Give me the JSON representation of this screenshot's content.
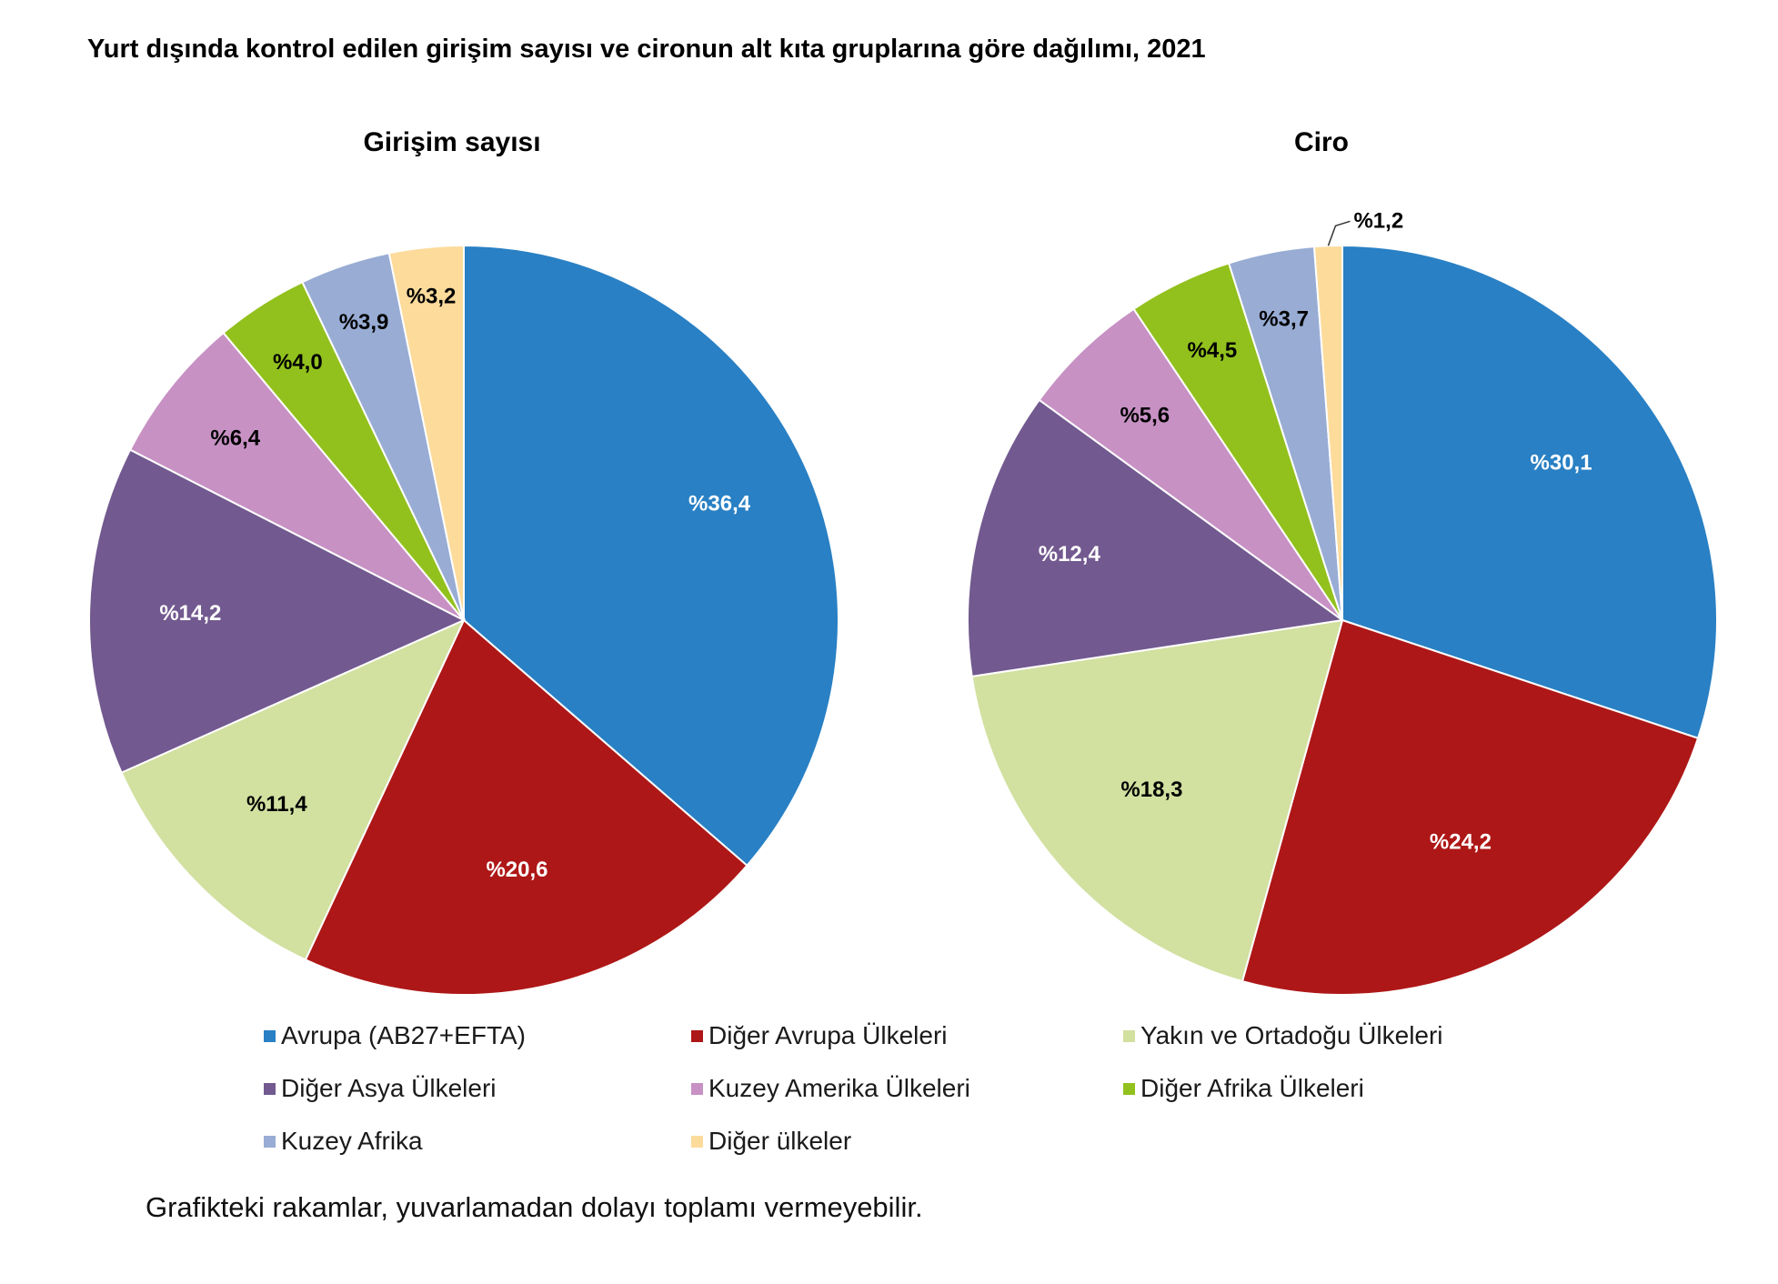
{
  "title": "Yurt dışında kontrol edilen girişim sayısı ve cironun alt kıta gruplarına göre dağılımı, 2021",
  "footnote": "Grafikteki rakamlar, yuvarlamadan dolayı toplamı vermeyebilir.",
  "chart_data": [
    {
      "type": "pie",
      "title": "Girişim sayısı",
      "categories": [
        "Avrupa (AB27+EFTA)",
        "Diğer Avrupa Ülkeleri",
        "Yakın ve Ortadoğu Ülkeleri",
        "Diğer Asya Ülkeleri",
        "Kuzey Amerika Ülkeleri",
        "Diğer Afrika Ülkeleri",
        "Kuzey Afrika",
        "Diğer ülkeler"
      ],
      "values": [
        36.4,
        20.6,
        11.4,
        14.2,
        6.4,
        4.0,
        3.9,
        3.2
      ],
      "labels": [
        "%36,4",
        "%20,6",
        "%11,4",
        "%14,2",
        "%6,4",
        "%4,0",
        "%3,9",
        "%3,2"
      ]
    },
    {
      "type": "pie",
      "title": "Ciro",
      "categories": [
        "Avrupa (AB27+EFTA)",
        "Diğer Avrupa Ülkeleri",
        "Yakın ve Ortadoğu Ülkeleri",
        "Diğer Asya Ülkeleri",
        "Kuzey Amerika Ülkeleri",
        "Diğer Afrika Ülkeleri",
        "Kuzey Afrika",
        "Diğer ülkeler"
      ],
      "values": [
        30.1,
        24.2,
        18.3,
        12.4,
        5.6,
        4.5,
        3.7,
        1.2
      ],
      "labels": [
        "%30,1",
        "%24,2",
        "%18,3",
        "%12,4",
        "%5,6",
        "%4,5",
        "%3,7",
        "%1,2"
      ]
    }
  ],
  "legend": [
    {
      "label": "Avrupa (AB27+EFTA)",
      "color": "#2980c4"
    },
    {
      "label": "Diğer Avrupa Ülkeleri",
      "color": "#ae1717"
    },
    {
      "label": "Yakın ve Ortadoğu Ülkeleri",
      "color": "#d2e0a0"
    },
    {
      "label": "Diğer Asya Ülkeleri",
      "color": "#72598f"
    },
    {
      "label": "Kuzey Amerika Ülkeleri",
      "color": "#c791c4"
    },
    {
      "label": "Diğer Afrika Ülkeleri",
      "color": "#92c11d"
    },
    {
      "label": "Kuzey Afrika",
      "color": "#98acd4"
    },
    {
      "label": "Diğer ülkeler",
      "color": "#fcdb9b"
    }
  ],
  "label_colors": [
    "#ffffff",
    "#ffffff",
    "#000000",
    "#ffffff",
    "#000000",
    "#000000",
    "#000000",
    "#000000"
  ]
}
